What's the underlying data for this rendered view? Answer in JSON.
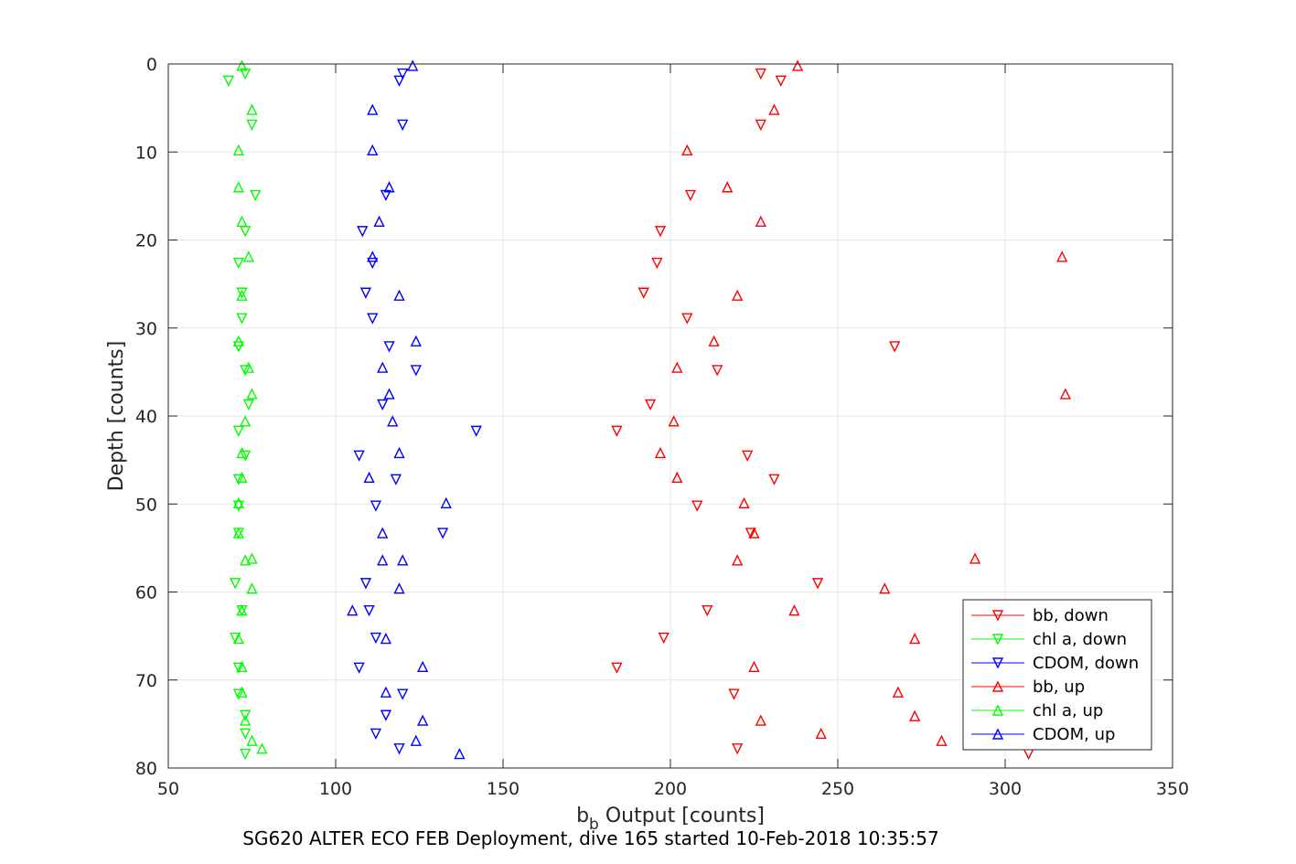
{
  "chart_data": {
    "type": "scatter",
    "title": "",
    "caption": "SG620 ALTER ECO FEB Deployment, dive 165 started 10-Feb-2018 10:35:57",
    "xlabel": {
      "main": "b",
      "sub": "b",
      "rest": " Output [counts]"
    },
    "ylabel": "Depth [counts]",
    "xlim": [
      50,
      350
    ],
    "ylim": [
      0,
      80
    ],
    "y_reversed": true,
    "grid": true,
    "xticks": [
      50,
      100,
      150,
      200,
      250,
      300,
      350
    ],
    "yticks": [
      0,
      10,
      20,
      30,
      40,
      50,
      60,
      70,
      80
    ],
    "legend_position": "bottom-right",
    "series": [
      {
        "name": "bb, down",
        "color": "#ff0000",
        "marker": "triangle-down",
        "points": [
          [
            227,
            1.1
          ],
          [
            233,
            1.9
          ],
          [
            227,
            6.9
          ],
          [
            206,
            14.9
          ],
          [
            197,
            19.0
          ],
          [
            196,
            22.6
          ],
          [
            192,
            26.0
          ],
          [
            205,
            28.9
          ],
          [
            267,
            32.1
          ],
          [
            214,
            34.8
          ],
          [
            194,
            38.7
          ],
          [
            184,
            41.7
          ],
          [
            223,
            44.5
          ],
          [
            231,
            47.2
          ],
          [
            208,
            50.2
          ],
          [
            224,
            53.3
          ],
          [
            244,
            59.0
          ],
          [
            211,
            62.1
          ],
          [
            198,
            65.2
          ],
          [
            184,
            68.6
          ],
          [
            219,
            71.6
          ],
          [
            220,
            77.8
          ],
          [
            307,
            78.4
          ]
        ]
      },
      {
        "name": "chl a, down",
        "color": "#00ff00",
        "marker": "triangle-down",
        "points": [
          [
            73,
            1.1
          ],
          [
            68,
            1.9
          ],
          [
            75,
            6.9
          ],
          [
            76,
            14.9
          ],
          [
            73,
            19.0
          ],
          [
            71,
            22.6
          ],
          [
            72,
            26.0
          ],
          [
            72,
            28.9
          ],
          [
            71,
            32.1
          ],
          [
            73,
            34.8
          ],
          [
            74,
            38.7
          ],
          [
            71,
            41.7
          ],
          [
            73,
            44.5
          ],
          [
            71,
            47.2
          ],
          [
            71,
            50.2
          ],
          [
            71,
            53.3
          ],
          [
            70,
            59.0
          ],
          [
            72,
            62.1
          ],
          [
            70,
            65.2
          ],
          [
            71,
            68.6
          ],
          [
            71,
            71.6
          ],
          [
            73,
            74.0
          ],
          [
            73,
            76.1
          ],
          [
            73,
            78.4
          ]
        ]
      },
      {
        "name": "CDOM, down",
        "color": "#0000ff",
        "marker": "triangle-down",
        "points": [
          [
            120,
            1.1
          ],
          [
            119,
            1.9
          ],
          [
            120,
            6.9
          ],
          [
            115,
            14.9
          ],
          [
            108,
            19.0
          ],
          [
            111,
            22.6
          ],
          [
            109,
            26.0
          ],
          [
            111,
            28.9
          ],
          [
            116,
            32.1
          ],
          [
            124,
            34.8
          ],
          [
            114,
            38.7
          ],
          [
            142,
            41.7
          ],
          [
            107,
            44.5
          ],
          [
            118,
            47.2
          ],
          [
            112,
            50.2
          ],
          [
            132,
            53.3
          ],
          [
            109,
            59.0
          ],
          [
            110,
            62.1
          ],
          [
            112,
            65.2
          ],
          [
            107,
            68.6
          ],
          [
            120,
            71.6
          ],
          [
            115,
            74.0
          ],
          [
            112,
            76.1
          ],
          [
            119,
            77.8
          ]
        ]
      },
      {
        "name": "bb, up",
        "color": "#ff0000",
        "marker": "triangle-up",
        "points": [
          [
            238,
            0.2
          ],
          [
            231,
            5.2
          ],
          [
            205,
            9.8
          ],
          [
            217,
            14.0
          ],
          [
            227,
            17.9
          ],
          [
            317,
            21.9
          ],
          [
            220,
            26.3
          ],
          [
            213,
            31.5
          ],
          [
            202,
            34.5
          ],
          [
            318,
            37.5
          ],
          [
            201,
            40.6
          ],
          [
            197,
            44.2
          ],
          [
            202,
            47.0
          ],
          [
            222,
            49.9
          ],
          [
            225,
            53.3
          ],
          [
            220,
            56.4
          ],
          [
            264,
            59.6
          ],
          [
            237,
            62.1
          ],
          [
            273,
            65.3
          ],
          [
            225,
            68.5
          ],
          [
            268,
            71.4
          ],
          [
            273,
            74.1
          ],
          [
            227,
            74.6
          ],
          [
            245,
            76.1
          ],
          [
            281,
            76.9
          ],
          [
            291,
            56.2
          ]
        ]
      },
      {
        "name": "chl a, up",
        "color": "#00ff00",
        "marker": "triangle-up",
        "points": [
          [
            72,
            0.2
          ],
          [
            75,
            5.2
          ],
          [
            71,
            9.8
          ],
          [
            71,
            14.0
          ],
          [
            72,
            17.9
          ],
          [
            74,
            21.9
          ],
          [
            72,
            26.3
          ],
          [
            71,
            31.5
          ],
          [
            74,
            34.5
          ],
          [
            75,
            37.5
          ],
          [
            73,
            40.6
          ],
          [
            72,
            44.2
          ],
          [
            72,
            47.0
          ],
          [
            71,
            49.9
          ],
          [
            71,
            53.3
          ],
          [
            75,
            56.2
          ],
          [
            73,
            56.4
          ],
          [
            75,
            59.6
          ],
          [
            72,
            62.1
          ],
          [
            71,
            65.3
          ],
          [
            72,
            68.5
          ],
          [
            72,
            71.4
          ],
          [
            73,
            74.6
          ],
          [
            75,
            76.9
          ],
          [
            78,
            77.8
          ]
        ]
      },
      {
        "name": "CDOM, up",
        "color": "#0000ff",
        "marker": "triangle-up",
        "points": [
          [
            123,
            0.2
          ],
          [
            111,
            5.2
          ],
          [
            111,
            9.8
          ],
          [
            116,
            14.0
          ],
          [
            113,
            17.9
          ],
          [
            111,
            21.9
          ],
          [
            119,
            26.3
          ],
          [
            124,
            31.5
          ],
          [
            114,
            34.5
          ],
          [
            116,
            37.5
          ],
          [
            117,
            40.6
          ],
          [
            119,
            44.2
          ],
          [
            110,
            47.0
          ],
          [
            133,
            49.9
          ],
          [
            114,
            53.3
          ],
          [
            114,
            56.4
          ],
          [
            120,
            56.4
          ],
          [
            119,
            59.6
          ],
          [
            105,
            62.1
          ],
          [
            115,
            65.3
          ],
          [
            126,
            68.5
          ],
          [
            115,
            71.4
          ],
          [
            126,
            74.6
          ],
          [
            124,
            76.9
          ],
          [
            137,
            78.4
          ]
        ]
      }
    ]
  }
}
